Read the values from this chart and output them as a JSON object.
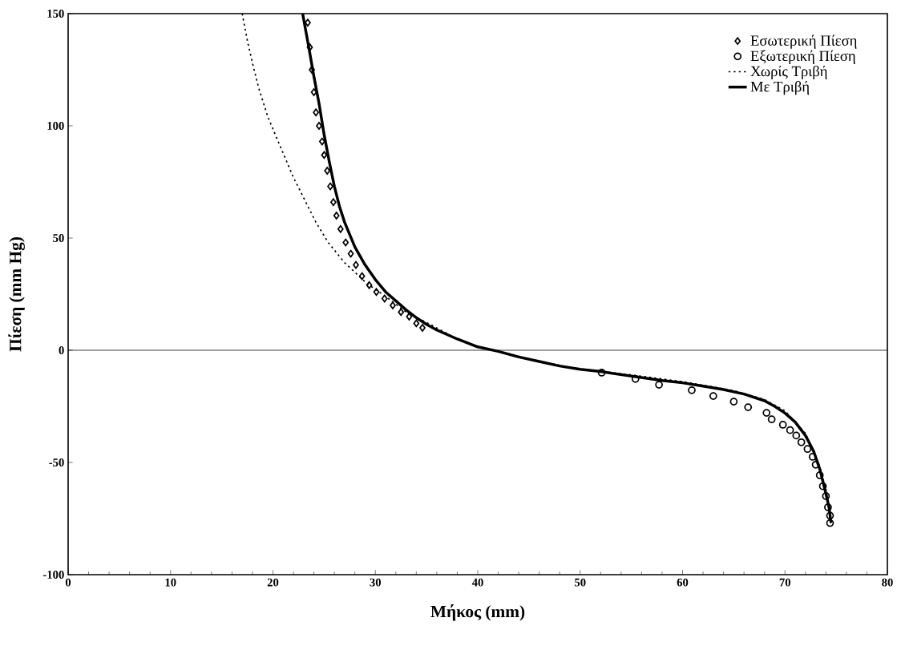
{
  "chart_data": {
    "type": "scatter",
    "xlabel": "Μήκος (mm)",
    "ylabel": "Πίεση (mm Hg)",
    "xlim": [
      0,
      80
    ],
    "ylim": [
      -100,
      150
    ],
    "xticks": [
      0,
      10,
      20,
      30,
      40,
      50,
      60,
      70,
      80
    ],
    "yticks": [
      -100,
      -50,
      0,
      50,
      100,
      150
    ],
    "legend": "top right",
    "grid": false,
    "ref_lines": [
      {
        "axis": "y",
        "value": 0
      }
    ],
    "series": [
      {
        "name": "Εσωτερική Πίεση",
        "marker": "diamond",
        "color": "#000000",
        "x": [
          23.4,
          23.6,
          23.8,
          24.0,
          24.2,
          24.5,
          24.8,
          25.0,
          25.3,
          25.6,
          25.9,
          26.2,
          26.6,
          27.1,
          27.6,
          28.1,
          28.7,
          29.4,
          30.1,
          30.9,
          31.7,
          32.5,
          33.3,
          34.0,
          34.6
        ],
        "values": [
          146,
          135,
          125,
          115,
          106,
          100,
          93,
          87,
          80,
          73,
          66,
          60,
          54,
          48,
          43,
          38,
          33,
          29,
          26,
          23,
          20,
          17,
          15,
          12,
          10
        ]
      },
      {
        "name": "Εξωτερική Πίεση",
        "marker": "circle",
        "color": "#000000",
        "x": [
          52.1,
          55.4,
          57.7,
          60.9,
          63.0,
          65.0,
          66.4,
          68.2,
          68.7,
          69.8,
          70.5,
          71.1,
          71.6,
          72.2,
          72.7,
          73.0,
          73.4,
          73.7,
          74.0,
          74.2,
          74.4,
          74.4
        ],
        "values": [
          -10,
          -12.8,
          -15.4,
          -17.8,
          -20.4,
          -22.9,
          -25.4,
          -27.9,
          -30.8,
          -33.2,
          -35.6,
          -38,
          -41,
          -44,
          -47.5,
          -51,
          -55.7,
          -60.6,
          -65,
          -70,
          -73.7,
          -77
        ]
      },
      {
        "name": "Χωρίς Τριβή",
        "type": "line",
        "line_style": "dotted",
        "color": "#000000",
        "x": [
          17,
          17.5,
          18,
          18.6,
          19.5,
          20.7,
          22,
          23.1,
          24.2,
          25.4,
          27,
          29.1,
          31,
          33,
          35.4,
          38,
          40,
          42,
          46,
          50,
          55,
          60,
          65,
          68,
          70,
          72,
          73.4,
          74,
          74.5
        ],
        "values": [
          150,
          138,
          128,
          117,
          104,
          91,
          77,
          67,
          57,
          48,
          39,
          30,
          24,
          17,
          11.4,
          5,
          1.5,
          -0.5,
          -5,
          -8.5,
          -11,
          -14,
          -18,
          -22,
          -27,
          -37,
          -52,
          -62,
          -77
        ]
      },
      {
        "name": "Με Τριβή",
        "type": "line",
        "line_style": "solid",
        "color": "#000000",
        "x": [
          22.9,
          23.5,
          24,
          24.5,
          25,
          25.5,
          26,
          26.5,
          27,
          28,
          29,
          30,
          31,
          32,
          33,
          34,
          35,
          36,
          38,
          40,
          42,
          44,
          46,
          48,
          50,
          52,
          55,
          58,
          60,
          62,
          64,
          66,
          68,
          69,
          70,
          71,
          72,
          72.8,
          73.4,
          73.9,
          74.3,
          74.5
        ],
        "values": [
          150,
          135,
          122,
          110,
          96,
          84,
          73,
          64,
          57,
          46,
          38,
          31.5,
          26,
          22,
          18,
          14.5,
          11.5,
          9,
          5,
          1.5,
          -0.5,
          -3,
          -5,
          -7,
          -8.5,
          -9.5,
          -11.5,
          -13.5,
          -14.5,
          -16,
          -17.5,
          -19.5,
          -22.5,
          -25,
          -28,
          -32,
          -38,
          -45,
          -53,
          -62,
          -70,
          -77
        ]
      }
    ]
  }
}
